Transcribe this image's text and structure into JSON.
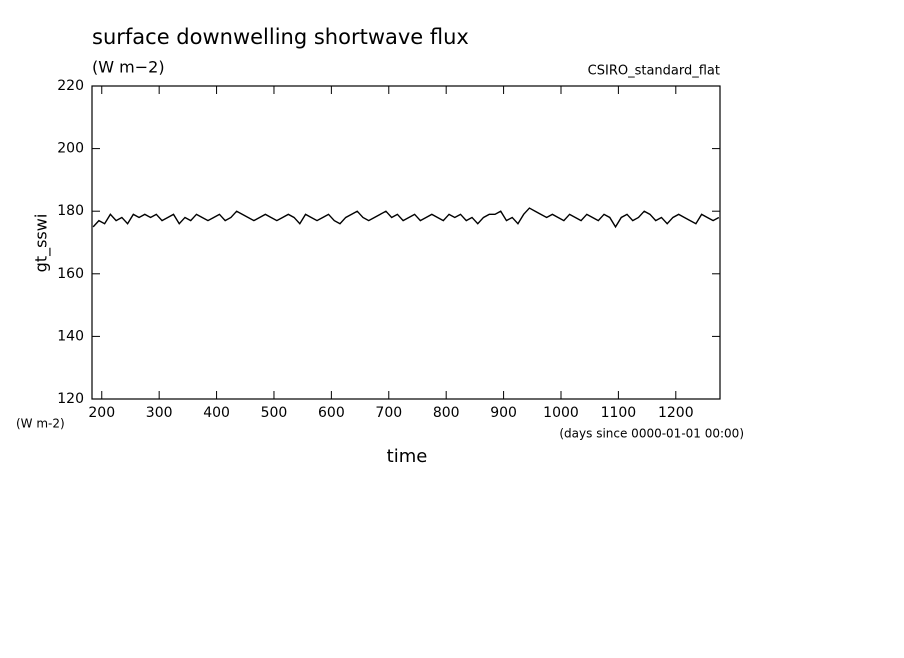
{
  "chart_data": {
    "type": "line",
    "title": "surface downwelling shortwave flux",
    "subtitle": "(W m−2)",
    "annotation": "CSIRO_standard_flat",
    "y_label": "gt_sswi",
    "y_unit": "(W m-2)",
    "x_label": "time",
    "x_unit": "(days since 0000-01-01 00:00)",
    "xlim": [
      183,
      1277
    ],
    "ylim": [
      120,
      220
    ],
    "xticks": [
      200,
      300,
      400,
      500,
      600,
      700,
      800,
      900,
      1000,
      1100,
      1200
    ],
    "yticks": [
      120,
      140,
      160,
      180,
      200,
      220
    ],
    "x": [
      185,
      195,
      205,
      215,
      225,
      235,
      245,
      255,
      265,
      275,
      285,
      295,
      305,
      315,
      325,
      335,
      345,
      355,
      365,
      375,
      385,
      395,
      405,
      415,
      425,
      435,
      445,
      455,
      465,
      475,
      485,
      495,
      505,
      515,
      525,
      535,
      545,
      555,
      565,
      575,
      585,
      595,
      605,
      615,
      625,
      635,
      645,
      655,
      665,
      675,
      685,
      695,
      705,
      715,
      725,
      735,
      745,
      755,
      765,
      775,
      785,
      795,
      805,
      815,
      825,
      835,
      845,
      855,
      865,
      875,
      885,
      895,
      905,
      915,
      925,
      935,
      945,
      955,
      965,
      975,
      985,
      995,
      1005,
      1015,
      1025,
      1035,
      1045,
      1055,
      1065,
      1075,
      1085,
      1095,
      1105,
      1115,
      1125,
      1135,
      1145,
      1155,
      1165,
      1175,
      1185,
      1195,
      1205,
      1215,
      1225,
      1235,
      1245,
      1255,
      1265,
      1275
    ],
    "series": [
      {
        "name": "gt_sswi",
        "color": "#000000",
        "values": [
          175,
          177,
          176,
          179,
          177,
          178,
          176,
          179,
          178,
          179,
          178,
          179,
          177,
          178,
          179,
          176,
          178,
          177,
          179,
          178,
          177,
          178,
          179,
          177,
          178,
          180,
          179,
          178,
          177,
          178,
          179,
          178,
          177,
          178,
          179,
          178,
          176,
          179,
          178,
          177,
          178,
          179,
          177,
          176,
          178,
          179,
          180,
          178,
          177,
          178,
          179,
          180,
          178,
          179,
          177,
          178,
          179,
          177,
          178,
          179,
          178,
          177,
          179,
          178,
          179,
          177,
          178,
          176,
          178,
          179,
          179,
          180,
          177,
          178,
          176,
          179,
          181,
          180,
          179,
          178,
          179,
          178,
          177,
          179,
          178,
          177,
          179,
          178,
          177,
          179,
          178,
          175,
          178,
          179,
          177,
          178,
          180,
          179,
          177,
          178,
          176,
          178,
          179,
          178,
          177,
          176,
          179,
          178,
          177,
          178
        ]
      }
    ]
  }
}
